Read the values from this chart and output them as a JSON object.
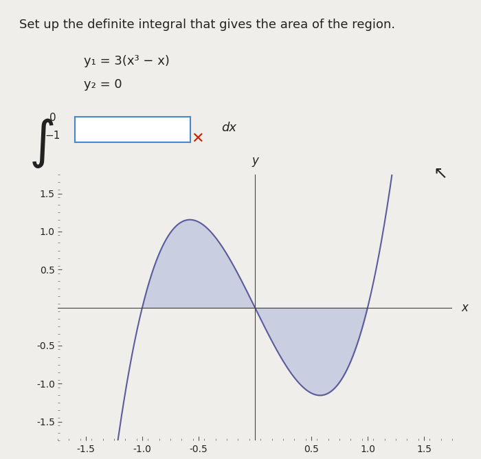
{
  "title_text": "Set up the definite integral that gives the area of the region.",
  "eq1": "y₁ = 3(x³ − x)",
  "eq2": "y₂ = 0",
  "integral_bounds_top": "0",
  "integral_bounds_bottom": "−1",
  "integral_suffix": "dx",
  "bg_color": "#f0eeea",
  "curve_color": "#5b5b9e",
  "fill_color": "#aab4d8",
  "fill_alpha": 0.55,
  "xlim": [
    -1.75,
    1.75
  ],
  "ylim": [
    -1.75,
    1.75
  ],
  "xticks": [
    -1.5,
    -1.0,
    -0.5,
    0.5,
    1.0,
    1.5
  ],
  "yticks": [
    -1.5,
    -1.0,
    -0.5,
    0.5,
    1.0,
    1.5
  ],
  "axis_label_x": "x",
  "axis_label_y": "y",
  "title_fontsize": 13,
  "eq_fontsize": 13,
  "tick_fontsize": 10,
  "axis_label_fontsize": 12,
  "text_color": "#222222",
  "red_x_color": "#cc2200",
  "box_color": "#4488cc"
}
